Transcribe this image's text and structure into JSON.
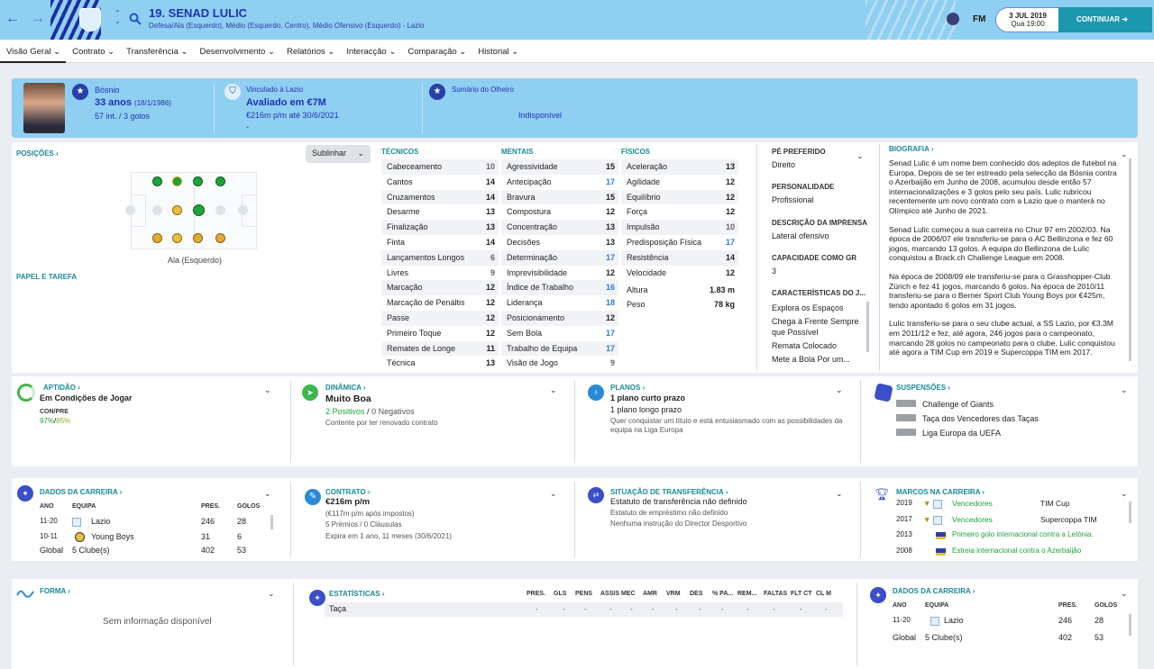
{
  "header": {
    "back": "←",
    "forward": "→",
    "title": "19. SENAD LULIC",
    "subtitle": "Defesa/Ala (Esquerdo), Médio (Esquerdo, Centro), Médio Ofensivo (Esquerdo) - Lazio",
    "fm": "FM",
    "date": "3 JUL 2019",
    "time": "Qua 19:00",
    "continue": "CONTINUAR"
  },
  "tabs": [
    "Visão Geral",
    "Contrato",
    "Transferência",
    "Desenvolvimento",
    "Relatórios",
    "Interacção",
    "Comparação",
    "Historial"
  ],
  "info": {
    "nationality": "Bósnio",
    "age": "33 anos",
    "dob": "(18/1/1986)",
    "caps": "57 int. / 3 golos",
    "club_label": "Vinculado à Lazio",
    "value": "Avaliado em €7M",
    "wage": "€216m p/m até 30/6/2021",
    "dash": "-",
    "scout_label": "Sumário do Olheiro",
    "scout_value": "Indisponível"
  },
  "positions": {
    "title": "POSIÇÕES",
    "role_title": "PAPEL E TAREFA",
    "highlight": "Sublinhar",
    "label": "Ala (Esquerdo)"
  },
  "cols": {
    "tec": "TÉCNICOS",
    "men": "MENTAIS",
    "fis": "FÍSICOS"
  },
  "technical": [
    [
      "Cabeceamento",
      "10"
    ],
    [
      "Cantos",
      "14"
    ],
    [
      "Cruzamentos",
      "14"
    ],
    [
      "Desarme",
      "13"
    ],
    [
      "Finalização",
      "13"
    ],
    [
      "Finta",
      "14"
    ],
    [
      "Lançamentos Longos",
      "6"
    ],
    [
      "Livres",
      "9"
    ],
    [
      "Marcação",
      "12"
    ],
    [
      "Marcação de Penáltis",
      "12"
    ],
    [
      "Passe",
      "12"
    ],
    [
      "Primeiro Toque",
      "12"
    ],
    [
      "Remates de Longe",
      "11"
    ],
    [
      "Técnica",
      "13"
    ]
  ],
  "mental": [
    [
      "Agressividade",
      "15"
    ],
    [
      "Antecipação",
      "17"
    ],
    [
      "Bravura",
      "15"
    ],
    [
      "Compostura",
      "12"
    ],
    [
      "Concentração",
      "13"
    ],
    [
      "Decisões",
      "13"
    ],
    [
      "Determinação",
      "17"
    ],
    [
      "Imprevisibilidade",
      "12"
    ],
    [
      "Índice de Trabalho",
      "16"
    ],
    [
      "Liderança",
      "18"
    ],
    [
      "Posicionamento",
      "12"
    ],
    [
      "Sem Bola",
      "17"
    ],
    [
      "Trabalho de Equipa",
      "17"
    ],
    [
      "Visão de Jogo",
      "9"
    ]
  ],
  "physical": [
    [
      "Aceleração",
      "13"
    ],
    [
      "Agilidade",
      "12"
    ],
    [
      "Equilíbrio",
      "12"
    ],
    [
      "Força",
      "12"
    ],
    [
      "Impulsão",
      "10"
    ],
    [
      "Predisposição Física",
      "17"
    ],
    [
      "Resistência",
      "14"
    ],
    [
      "Velocidade",
      "12"
    ]
  ],
  "height": [
    "Altura",
    "1.83 m"
  ],
  "weight": [
    "Peso",
    "78 kg"
  ],
  "traits": {
    "foot_t": "PÉ PREFERIDO",
    "foot": "Direito",
    "pers_t": "PERSONALIDADE",
    "pers": "Profissional",
    "press_t": "DESCRIÇÃO DA IMPRENSA",
    "press": "Lateral ofensivo",
    "cap_t": "CAPACIDADE COMO GR",
    "cap": "3",
    "char_t": "CARACTERÍSTICAS DO J...",
    "chars": [
      "Explora os Espaços",
      "Chega à Frente Sempre que Possível",
      "Remata Colocado",
      "Mete a Bola Por um..."
    ]
  },
  "bio": {
    "title": "BIOGRAFIA",
    "p1": "Senad Lulic é um nome bem conhecido dos adeptos de futebol na Europa. Depois de se ter estreado pela selecção da Bósnia contra o Azerbaijão em Junho de 2008, acumulou desde então 57 internacionalizações e 3 golos pelo seu país. Lulic rubricou recentemente um novo contrato com a Lazio que o manterá no Olímpico até Junho de 2021.",
    "p2": "Senad Lulic começou a sua carreira no Chur 97 em 2002/03. Na época de 2006/07 ele transferiu-se para o AC Bellinzona e fez 60 jogos, marcando 13 golos. A equipa do Bellinzona de Lulic conquistou a Brack.ch Challenge League em 2008.",
    "p3": "Na época de 2008/09 ele transferiu-se para o Grasshopper-Club Zürich e fez 41 jogos, marcando 6 golos. Na época de 2010/11 transferiu-se para o Berner Sport Club Young Boys por €425m, tendo apontado 6 golos em 31 jogos.",
    "p4": "Lulic transferiu-se para o seu clube actual, a SS Lazio, por €3.3M em 2011/12 e fez, até agora, 246 jogos para o campeonato, marcando 28 golos no campeonato para o clube. Lulic conquistou até agora a TIM Cup em 2019 e Supercoppa TIM em 2017."
  },
  "fitness": {
    "title": "APTIDÃO",
    "value": "Em Condições de Jogar",
    "conpre_t": "CON/PRE",
    "con": "97%",
    "sep": "/",
    "pre": "85%"
  },
  "dynamics": {
    "title": "DINÂMICA",
    "value": "Muito Boa",
    "pos": "2 Positivos",
    "sep": "/",
    "neg": "0 Negativos",
    "note": "Contente por ter renovado contrato"
  },
  "plans": {
    "title": "PLANOS",
    "short": "1 plano curto prazo",
    "long": "1 plano longo prazo",
    "note": "Quer conquistar um título e está entusiasmado com as possibilidades da equipa na Liga Europa"
  },
  "susp": {
    "title": "SUSPENSÕES",
    "items": [
      "Challenge of Giants",
      "Taça dos Vencedores das Taças",
      "Liga Europa da UEFA"
    ]
  },
  "career": {
    "title": "DADOS DA CARREIRA",
    "h": [
      "ANO",
      "EQUIPA",
      "PRES.",
      "GOLOS"
    ],
    "rows": [
      [
        "11-20",
        "Lazio",
        "246",
        "28"
      ],
      [
        "10-11",
        "Young Boys",
        "31",
        "6"
      ],
      [
        "Global",
        "5 Clube(s)",
        "402",
        "53"
      ]
    ]
  },
  "contract": {
    "title": "CONTRATO",
    "wage": "€216m p/m",
    "after_tax": "(€117m p/m após impostos)",
    "bonuses": "5 Prémios / 0 Cláusulas",
    "expires": "Expira em 1 ano, 11 meses (30/6/2021)"
  },
  "transfer": {
    "title": "SITUAÇÃO DE TRANSFERÊNCIA",
    "status": "Estatuto de transferência não definido",
    "loan": "Estatuto de empréstimo não definido",
    "dir": "Nenhuma instrução do Director Desportivo"
  },
  "mile": {
    "title": "MARCOS NA CARREIRA",
    "rows": [
      [
        "2019",
        "Vencedores",
        "TIM Cup"
      ],
      [
        "2017",
        "Vencedores",
        "Supercoppa TIM"
      ],
      [
        "2013",
        "Primeiro golo internacional contra a Letónia.",
        ""
      ],
      [
        "2008",
        "Estreia internacional contra o Azerbaijão",
        ""
      ]
    ]
  },
  "form": {
    "title": "FORMA",
    "empty": "Sem informação disponível"
  },
  "stats": {
    "title": "ESTATÍSTICAS",
    "h": [
      "PRES.",
      "GLS",
      "PENS",
      "ASSIS",
      "MEC",
      "AMR",
      "VRM",
      "DES",
      "% PA...",
      "REM...",
      "FALTAS",
      "FLT CT",
      "CL M"
    ],
    "row_label": "Taça",
    "row": [
      "-",
      "-",
      "-",
      "-",
      "-",
      "-",
      "-",
      "-",
      "-",
      "-",
      "-",
      "-",
      "-"
    ]
  },
  "career2": {
    "title": "DADOS DA CARREIRA",
    "h": [
      "ANO",
      "EQUIPA",
      "PRES.",
      "GOLOS"
    ],
    "rows": [
      [
        "11-20",
        "Lazio",
        "246",
        "28"
      ],
      [
        "Global",
        "5 Clube(s)",
        "402",
        "53"
      ]
    ]
  }
}
